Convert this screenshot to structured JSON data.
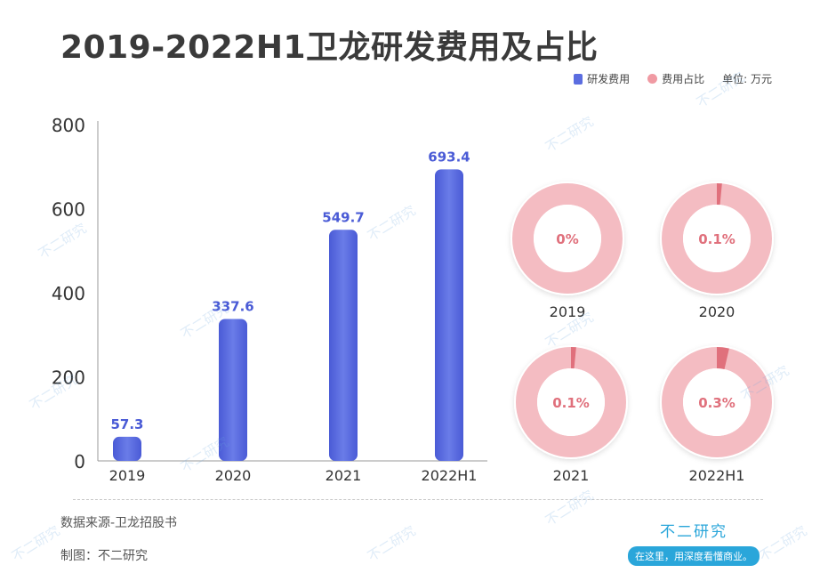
{
  "title": "2019-2022H1卫龙研发费用及占比",
  "legend": {
    "rd_label": "研发费用",
    "ratio_label": "费用占比",
    "unit": "单位: 万元",
    "rd_color": "#5b6de0",
    "ratio_color": "#f09aa3"
  },
  "chart_data": [
    {
      "type": "bar",
      "categories": [
        "2019",
        "2020",
        "2021",
        "2022H1"
      ],
      "series": [
        {
          "name": "研发费用",
          "values": [
            57.3,
            337.6,
            549.7,
            693.4
          ]
        }
      ],
      "ylim": [
        0,
        800
      ],
      "yticks": [
        0,
        200,
        400,
        600,
        800
      ],
      "data_labels": [
        "57.3",
        "337.6",
        "549.7",
        "693.4"
      ],
      "color": "#5b6de0"
    },
    {
      "type": "pie",
      "style": "donut",
      "categories": [
        "2019",
        "2020",
        "2021",
        "2022H1"
      ],
      "series": [
        {
          "name": "费用占比",
          "values": [
            0,
            0.1,
            0.1,
            0.3
          ]
        }
      ],
      "labels": [
        "0%",
        "0.1%",
        "0.1%",
        "0.3%"
      ],
      "color": "#f09aa3"
    }
  ],
  "footer": {
    "source": "数据来源-卫龙招股书",
    "maker": "制图：不二研究"
  },
  "brand": {
    "name": "不二研究",
    "slogan": "在这里，用深度看懂商业。"
  },
  "watermark_text": "不二研究"
}
